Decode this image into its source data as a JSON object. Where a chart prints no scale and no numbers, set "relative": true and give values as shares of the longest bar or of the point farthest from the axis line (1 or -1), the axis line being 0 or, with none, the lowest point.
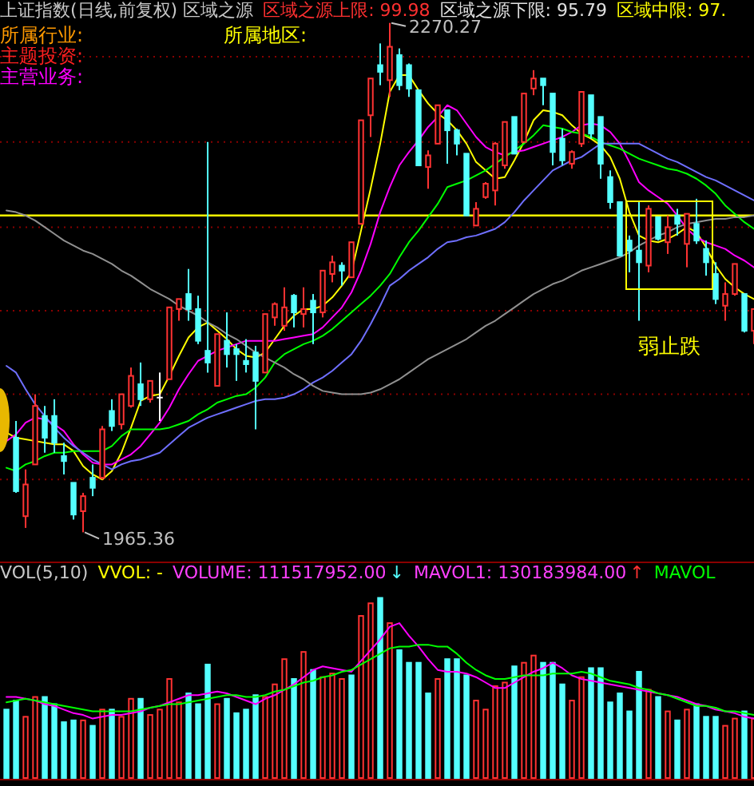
{
  "chart_data": [
    {
      "type": "candlestick",
      "title": "上证指数(日线,前复权) 区域之源",
      "categories": [
        null,
        null,
        null,
        null,
        null,
        null,
        null,
        null,
        null,
        null,
        null,
        null,
        null,
        null,
        null,
        null,
        null,
        null,
        null,
        null,
        null,
        null,
        null,
        null,
        null,
        null,
        null,
        null,
        null,
        null,
        null,
        null,
        null,
        null,
        null,
        null,
        null,
        null,
        null,
        null,
        null,
        null,
        null,
        null,
        null,
        null,
        null,
        null,
        null,
        null,
        null,
        null,
        null,
        null,
        null,
        null,
        null,
        null,
        null,
        null,
        null,
        null,
        null,
        null,
        null,
        null,
        null,
        null,
        null,
        null,
        null,
        null,
        null,
        null,
        null,
        null,
        null,
        null,
        null
      ],
      "ohlc": [
        null,
        [
          2022,
          2032,
          1989,
          1990
        ],
        [
          1975,
          2003,
          1968,
          1994
        ],
        [
          2006,
          2048,
          2006,
          2041
        ],
        [
          2035,
          2041,
          2013,
          2022
        ],
        [
          2035,
          2045,
          2013,
          2019
        ],
        [
          2011,
          2019,
          2000,
          2008
        ],
        [
          1995,
          1995,
          1973,
          1976
        ],
        [
          1978,
          1989,
          1965.36,
          1987
        ],
        [
          1998,
          2006,
          1987,
          1992
        ],
        [
          1998,
          2029,
          1997,
          2027
        ],
        [
          2038,
          2045,
          2026,
          2029
        ],
        [
          2030,
          2048,
          2027,
          2048
        ],
        [
          2041,
          2064,
          2040,
          2059
        ],
        [
          2054,
          2067,
          2041,
          2045
        ],
        [
          2045,
          2056,
          2043,
          2056
        ],
        [
          2046,
          2061,
          2032,
          2046
        ],
        [
          2057,
          2100,
          2057,
          2100
        ],
        [
          2099,
          2105,
          2092,
          2105
        ],
        [
          2108,
          2123,
          2092,
          2099
        ],
        [
          2099,
          2107,
          2078,
          2080
        ],
        [
          2074,
          2199,
          2061,
          2067
        ],
        [
          2053,
          2084,
          2053,
          2084
        ],
        [
          2080,
          2097,
          2064,
          2072
        ],
        [
          2075,
          2078,
          2056,
          2072
        ],
        [
          2068,
          2081,
          2061,
          2066
        ],
        [
          2073,
          2077,
          2027,
          2056
        ],
        [
          2061,
          2096,
          2061,
          2096
        ],
        [
          2094,
          2103,
          2089,
          2102
        ],
        [
          2089,
          2112,
          2086,
          2100
        ],
        [
          2107,
          2108,
          2088,
          2097
        ],
        [
          2096,
          2112,
          2088,
          2099
        ],
        [
          2104,
          2108,
          2078,
          2097
        ],
        [
          2097,
          2122,
          2094,
          2122
        ],
        [
          2120,
          2131,
          2115,
          2127
        ],
        [
          2125,
          2127,
          2113,
          2122
        ],
        [
          2118,
          2139,
          2118,
          2139
        ],
        [
          2150,
          2212,
          2150,
          2212
        ],
        [
          2215,
          2237,
          2202,
          2237
        ],
        [
          2245,
          2258,
          2233,
          2241
        ],
        [
          2236,
          2270.27,
          2226,
          2256
        ],
        [
          2251,
          2255,
          2230,
          2233
        ],
        [
          2245,
          2246,
          2226,
          2231
        ],
        [
          2230,
          2230,
          2185,
          2185
        ],
        [
          2184,
          2194,
          2171,
          2191
        ],
        [
          2198,
          2221,
          2198,
          2221
        ],
        [
          2218,
          2218,
          2186,
          2206
        ],
        [
          2206,
          2207,
          2191,
          2198
        ],
        [
          2192,
          2192,
          2155,
          2155
        ],
        [
          2149,
          2163,
          2149,
          2159
        ],
        [
          2166,
          2175,
          2165,
          2174
        ],
        [
          2170,
          2199,
          2161,
          2198
        ],
        [
          2185,
          2211,
          2183,
          2211
        ],
        [
          2214,
          2214,
          2192,
          2192
        ],
        [
          2199,
          2228,
          2199,
          2228
        ],
        [
          2231,
          2242,
          2227,
          2237
        ],
        [
          2237,
          2237,
          2221,
          2233
        ],
        [
          2228,
          2228,
          2185,
          2193
        ],
        [
          2201,
          2207,
          2185,
          2188
        ],
        [
          2186,
          2194,
          2183,
          2193
        ],
        [
          2198,
          2229,
          2196,
          2229
        ],
        [
          2227,
          2227,
          2201,
          2204
        ],
        [
          2214,
          2214,
          2177,
          2186
        ],
        [
          2178,
          2182,
          2159,
          2163
        ],
        [
          2163,
          2163,
          2131,
          2131
        ],
        [
          2140,
          2143,
          2121,
          2134
        ],
        [
          2134,
          2163,
          2092,
          2127
        ],
        [
          2125,
          2161,
          2121,
          2159
        ],
        [
          2154,
          2154,
          2140,
          2141
        ],
        [
          2139,
          2155,
          2132,
          2148
        ],
        [
          2155,
          2159,
          2143,
          2150
        ],
        [
          2138,
          2156,
          2124,
          2156
        ],
        [
          2150,
          2165,
          2138,
          2140
        ],
        [
          2135,
          2140,
          2119,
          2127
        ],
        [
          2120,
          2127,
          2102,
          2105
        ],
        [
          2101,
          2115,
          2092,
          2108
        ],
        [
          2108,
          2126,
          2107,
          2126
        ],
        [
          2108,
          2108,
          2085,
          2086
        ],
        [
          2086,
          2099,
          2078,
          2099
        ]
      ],
      "yticks": [
        {
          "value": 2250,
          "label": null
        },
        {
          "value": 2199,
          "label": null
        },
        {
          "value": 2148,
          "label": null
        },
        {
          "value": 2098,
          "label": null
        },
        {
          "value": 2048,
          "label": null
        },
        {
          "value": 1997,
          "label": null
        }
      ],
      "grid": "y",
      "ref_lines": [
        {
          "axis": "y",
          "value": 2155,
          "color": "#ffff00"
        }
      ],
      "series": [
        {
          "type": "line",
          "color": "#ffff00",
          "values": [
            2025,
            2022,
            2021,
            2020,
            2019,
            2018,
            2018,
            2014,
            2005,
            2000,
            1997,
            2002,
            2013,
            2028,
            2044,
            2047,
            2048,
            2059,
            2071,
            2082,
            2088,
            2091,
            2086,
            2081,
            2075,
            2071,
            2070,
            2073,
            2081,
            2089,
            2095,
            2099,
            2099,
            2101,
            2106,
            2113,
            2121,
            2146,
            2171,
            2198,
            2229,
            2239,
            2239,
            2230,
            2222,
            2216,
            2212,
            2206,
            2198,
            2187,
            2182,
            2177,
            2178,
            2188,
            2199,
            2212,
            2218,
            2217,
            2215,
            2209,
            2204,
            2201,
            2197,
            2190,
            2177,
            2157,
            2143,
            2140,
            2139,
            2141,
            2144,
            2148,
            2145,
            2136,
            2125,
            2117,
            2112,
            2108,
            2105
          ]
        },
        {
          "type": "line",
          "color": "#ff00ff",
          "values": [
            2020,
            2024,
            2031,
            2034,
            2033,
            2030,
            2026,
            2018,
            2012,
            2007,
            2006,
            2006,
            2009,
            2012,
            2017,
            2024,
            2031,
            2040,
            2051,
            2060,
            2068,
            2071,
            2074,
            2076,
            2078,
            2080,
            2080,
            2080,
            2080,
            2081,
            2082,
            2083,
            2084,
            2088,
            2094,
            2100,
            2109,
            2122,
            2138,
            2157,
            2172,
            2185,
            2193,
            2200,
            2208,
            2214,
            2221,
            2218,
            2210,
            2202,
            2196,
            2193,
            2191,
            2193,
            2194,
            2196,
            2198,
            2200,
            2202,
            2205,
            2209,
            2210,
            2209,
            2205,
            2198,
            2187,
            2175,
            2170,
            2166,
            2162,
            2155,
            2147,
            2142,
            2139,
            2137,
            2135,
            2131,
            2128,
            2124
          ]
        },
        {
          "type": "line",
          "color": "#00ff00",
          "values": [
            2004,
            2002,
            2006,
            2008,
            2011,
            2013,
            2013,
            2014,
            2014,
            2014,
            2014,
            2017,
            2023,
            2027,
            2027,
            2027,
            2027,
            2028,
            2030,
            2032,
            2036,
            2039,
            2043,
            2045,
            2047,
            2048,
            2052,
            2058,
            2067,
            2072,
            2075,
            2078,
            2080,
            2083,
            2087,
            2092,
            2097,
            2102,
            2107,
            2113,
            2120,
            2130,
            2139,
            2146,
            2154,
            2162,
            2172,
            2174,
            2176,
            2179,
            2182,
            2186,
            2190,
            2194,
            2198,
            2203,
            2209,
            2208,
            2207,
            2205,
            2204,
            2202,
            2199,
            2197,
            2195,
            2192,
            2189,
            2187,
            2185,
            2183,
            2182,
            2180,
            2177,
            2173,
            2168,
            2161,
            2156,
            2151,
            2147
          ]
        },
        {
          "type": "line",
          "color": "#6f6fff",
          "values": [
            2065,
            2061,
            2051,
            2042,
            2035,
            2028,
            2022,
            2017,
            2013,
            2009,
            2006,
            2003,
            2006,
            2008,
            2009,
            2011,
            2013,
            2018,
            2023,
            2028,
            2031,
            2034,
            2036,
            2038,
            2040,
            2042,
            2044,
            2045,
            2045,
            2046,
            2048,
            2051,
            2055,
            2058,
            2062,
            2067,
            2072,
            2080,
            2090,
            2101,
            2113,
            2117,
            2122,
            2126,
            2130,
            2135,
            2139,
            2140,
            2142,
            2143,
            2145,
            2147,
            2151,
            2157,
            2164,
            2170,
            2176,
            2182,
            2185,
            2188,
            2190,
            2194,
            2198,
            2198,
            2198,
            2198,
            2198,
            2195,
            2192,
            2189,
            2187,
            2184,
            2181,
            2178,
            2176,
            2173,
            2170,
            2167,
            2164
          ]
        },
        {
          "type": "line",
          "color": "#909090",
          "values": [
            2158,
            2157,
            2155,
            2152,
            2148,
            2144,
            2140,
            2137,
            2134,
            2132,
            2129,
            2126,
            2122,
            2119,
            2115,
            2111,
            2108,
            2105,
            2101,
            2098,
            2095,
            2091,
            2088,
            2084,
            2081,
            2077,
            2073,
            2070,
            2067,
            2064,
            2060,
            2057,
            2053,
            2050,
            2049,
            2048,
            2048,
            2048,
            2049,
            2051,
            2054,
            2057,
            2061,
            2065,
            2069,
            2072,
            2075,
            2078,
            2081,
            2085,
            2089,
            2092,
            2096,
            2100,
            2104,
            2108,
            2111,
            2114,
            2116,
            2119,
            2122,
            2124,
            2126,
            2128,
            2130,
            2133,
            2137,
            2140,
            2143,
            2145,
            2148,
            2150,
            2151,
            2152,
            2153,
            2153,
            2154,
            2154,
            2155
          ]
        }
      ],
      "annotations": [
        "区域之源上限: 99.98",
        "区域之源下限: 95.79",
        "区域中限: 97.",
        "所属行业:",
        "所属地区:",
        "主题投资:",
        "主营业务:",
        "2270.27",
        "1965.36",
        "弱止跌"
      ]
    },
    {
      "type": "bar",
      "title": "VOL(5,10)",
      "relative": true,
      "categories": [
        null,
        null,
        null,
        null,
        null,
        null,
        null,
        null,
        null,
        null,
        null,
        null,
        null,
        null,
        null,
        null,
        null,
        null,
        null,
        null,
        null,
        null,
        null,
        null,
        null,
        null,
        null,
        null,
        null,
        null,
        null,
        null,
        null,
        null,
        null,
        null,
        null,
        null,
        null,
        null,
        null,
        null,
        null,
        null,
        null,
        null,
        null,
        null,
        null,
        null,
        null,
        null,
        null,
        null,
        null,
        null,
        null,
        null,
        null,
        null,
        null,
        null,
        null,
        null,
        null,
        null,
        null,
        null,
        null,
        null,
        null,
        null,
        null,
        null,
        null,
        null,
        null,
        null,
        null
      ],
      "series": [
        {
          "type": "bar",
          "values": [
            0.38,
            0.43,
            0.34,
            0.45,
            0.45,
            0.41,
            0.31,
            0.32,
            0.32,
            0.29,
            0.38,
            0.38,
            0.34,
            0.44,
            0.44,
            0.35,
            0.38,
            0.55,
            0.42,
            0.47,
            0.41,
            0.63,
            0.41,
            0.44,
            0.36,
            0.38,
            0.46,
            0.45,
            0.52,
            0.66,
            0.55,
            0.7,
            0.6,
            0.56,
            0.58,
            0.55,
            0.57,
            0.9,
            0.97,
            1,
            0.86,
            0.71,
            0.64,
            0.64,
            0.47,
            0.55,
            0.66,
            0.66,
            0.57,
            0.43,
            0.38,
            0.51,
            0.53,
            0.62,
            0.64,
            0.68,
            0.64,
            0.64,
            0.52,
            0.43,
            0.56,
            0.61,
            0.61,
            0.42,
            0.47,
            0.37,
            0.59,
            0.49,
            0.45,
            0.37,
            0.32,
            0.38,
            0.41,
            0.34,
            0.34,
            0.29,
            0.33,
            0.37,
            0.33
          ],
          "colors": [
            "#54ffff",
            "#54ffff",
            "#ff3232",
            "#ff3232",
            "#54ffff",
            "#54ffff",
            "#54ffff",
            "#54ffff",
            "#ff3232",
            "#54ffff",
            "#ff3232",
            "#54ffff",
            "#ff3232",
            "#ff3232",
            "#54ffff",
            "#ff3232",
            "#ff3232",
            "#ff3232",
            "#ff3232",
            "#54ffff",
            "#54ffff",
            "#54ffff",
            "#ff3232",
            "#54ffff",
            "#54ffff",
            "#54ffff",
            "#54ffff",
            "#ff3232",
            "#ff3232",
            "#ff3232",
            "#54ffff",
            "#ff3232",
            "#54ffff",
            "#ff3232",
            "#ff3232",
            "#ff3232",
            "#54ffff",
            "#ff3232",
            "#ff3232",
            "#54ffff",
            "#ff3232",
            "#54ffff",
            "#54ffff",
            "#54ffff",
            "#54ffff",
            "#ff3232",
            "#54ffff",
            "#54ffff",
            "#54ffff",
            "#ff3232",
            "#ff3232",
            "#ff3232",
            "#ff3232",
            "#54ffff",
            "#ff3232",
            "#ff3232",
            "#54ffff",
            "#54ffff",
            "#54ffff",
            "#ff3232",
            "#ff3232",
            "#54ffff",
            "#54ffff",
            "#54ffff",
            "#54ffff",
            "#54ffff",
            "#54ffff",
            "#ff3232",
            "#54ffff",
            "#ff3232",
            "#54ffff",
            "#ff3232",
            "#54ffff",
            "#54ffff",
            "#54ffff",
            "#ff3232",
            "#ff3232",
            "#54ffff",
            "#ff3232"
          ]
        },
        {
          "type": "line",
          "color": "#ff00ff",
          "values": [
            0.45,
            0.45,
            0.44,
            0.43,
            0.41,
            0.4,
            0.38,
            0.36,
            0.35,
            0.33,
            0.34,
            0.35,
            0.35,
            0.36,
            0.37,
            0.39,
            0.4,
            0.42,
            0.44,
            0.46,
            0.46,
            0.47,
            0.48,
            0.47,
            0.45,
            0.43,
            0.41,
            0.44,
            0.46,
            0.49,
            0.52,
            0.56,
            0.6,
            0.62,
            0.61,
            0.6,
            0.59,
            0.65,
            0.71,
            0.77,
            0.84,
            0.86,
            0.79,
            0.73,
            0.66,
            0.6,
            0.59,
            0.59,
            0.58,
            0.56,
            0.53,
            0.5,
            0.5,
            0.53,
            0.56,
            0.59,
            0.61,
            0.64,
            0.61,
            0.57,
            0.55,
            0.54,
            0.53,
            0.52,
            0.51,
            0.5,
            0.49,
            0.48,
            0.47,
            0.46,
            0.45,
            0.43,
            0.41,
            0.4,
            0.38,
            0.37,
            0.36,
            0.34,
            0.33
          ]
        },
        {
          "type": "line",
          "color": "#00ff00",
          "values": [
            0.42,
            0.43,
            0.44,
            0.43,
            0.42,
            0.41,
            0.4,
            0.39,
            0.38,
            0.37,
            0.37,
            0.37,
            0.37,
            0.37,
            0.38,
            0.39,
            0.4,
            0.41,
            0.41,
            0.42,
            0.43,
            0.44,
            0.45,
            0.46,
            0.46,
            0.45,
            0.45,
            0.46,
            0.48,
            0.49,
            0.51,
            0.53,
            0.54,
            0.56,
            0.57,
            0.59,
            0.6,
            0.63,
            0.66,
            0.69,
            0.72,
            0.73,
            0.73,
            0.74,
            0.74,
            0.73,
            0.73,
            0.69,
            0.64,
            0.6,
            0.57,
            0.55,
            0.55,
            0.56,
            0.57,
            0.57,
            0.57,
            0.58,
            0.58,
            0.58,
            0.59,
            0.58,
            0.56,
            0.54,
            0.53,
            0.52,
            0.5,
            0.49,
            0.47,
            0.46,
            0.44,
            0.42,
            0.4,
            0.4,
            0.39,
            0.37,
            0.37,
            0.36,
            0.35
          ]
        }
      ],
      "annotations": [
        "VVOL: -",
        "VOLUME: 111517952.00",
        "↓",
        "MAVOL1: 130183984.00",
        "↑",
        "MAVOL"
      ]
    }
  ]
}
